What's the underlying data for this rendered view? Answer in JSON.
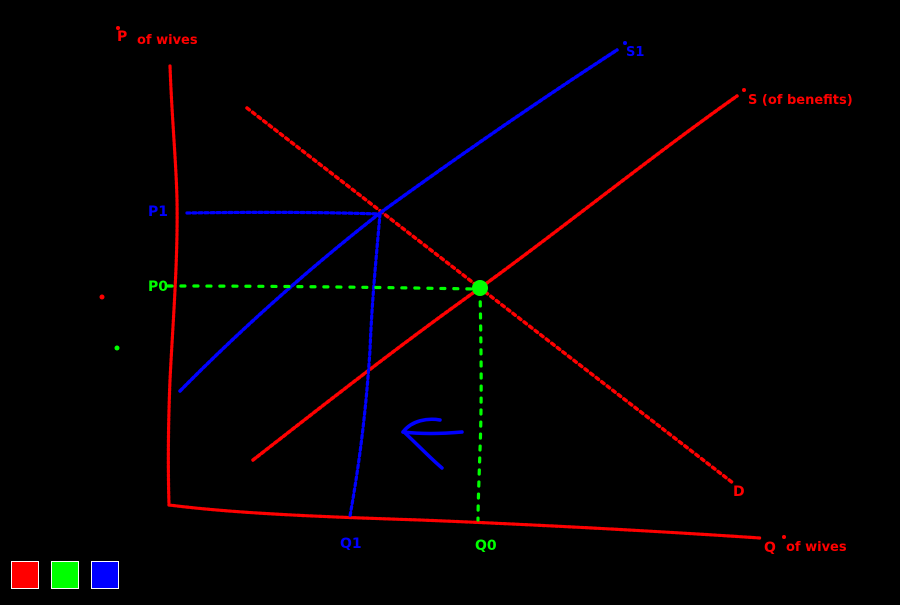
{
  "colors": {
    "background": "#000000",
    "red": "#ff0000",
    "green": "#00ff00",
    "blue": "#0000ff"
  },
  "labels": {
    "y_axis": "P",
    "y_axis_suffix": "of wives",
    "x_axis": "Q",
    "x_axis_suffix": "of wives",
    "supply": "S (of benefits)",
    "supply_shifted": "S1",
    "demand": "D",
    "price_initial": "P0",
    "price_new": "P1",
    "quantity_initial": "Q0",
    "quantity_new": "Q1"
  },
  "palette": [
    {
      "name": "red",
      "color": "#ff0000"
    },
    {
      "name": "green",
      "color": "#00ff00"
    },
    {
      "name": "blue",
      "color": "#0000ff"
    }
  ]
}
